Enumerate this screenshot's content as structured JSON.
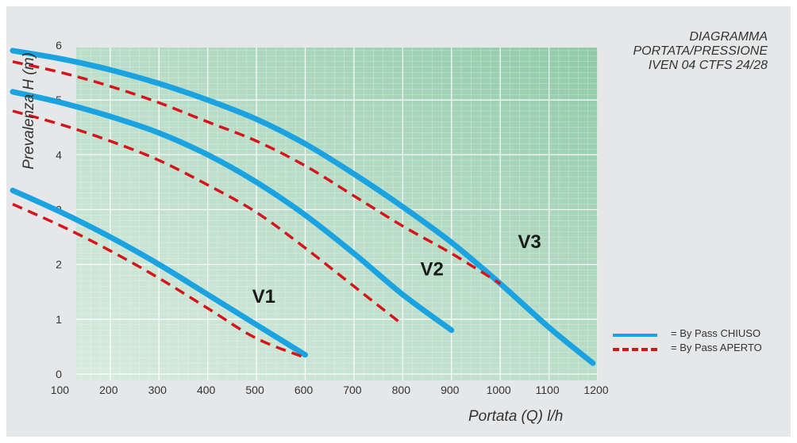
{
  "chart_data": {
    "type": "line",
    "title": [
      "DIAGRAMMA",
      "PORTATA/PRESSIONE",
      "IVEN 04 CTFS 24/28"
    ],
    "xlabel": "Portata (Q) l/h",
    "ylabel": "Prevalenza  H (m)",
    "xlim": [
      0,
      1200
    ],
    "ylim": [
      0,
      6
    ],
    "xticks": [
      100,
      200,
      300,
      400,
      500,
      600,
      700,
      800,
      900,
      1000,
      1100,
      1200
    ],
    "yticks": [
      0,
      1,
      2,
      3,
      4,
      5,
      6
    ],
    "grid": true,
    "legend_position": "right",
    "legend": [
      {
        "label": "By Pass CHIUSO",
        "style": "solid",
        "color": "#1aa3e0"
      },
      {
        "label": "By Pass APERTO",
        "style": "dashed",
        "color": "#d4161c"
      }
    ],
    "curves": [
      {
        "label": "V1",
        "label_at": [
          515,
          1.3
        ],
        "by_pass_chiuso": {
          "x": [
            0,
            100,
            200,
            300,
            400,
            500,
            600
          ],
          "y": [
            3.35,
            2.95,
            2.5,
            2.0,
            1.45,
            0.9,
            0.35
          ]
        },
        "by_pass_aperto": {
          "x": [
            0,
            100,
            200,
            300,
            400,
            500,
            600
          ],
          "y": [
            3.1,
            2.7,
            2.25,
            1.75,
            1.2,
            0.65,
            0.3
          ]
        }
      },
      {
        "label": "V2",
        "label_at": [
          860,
          1.8
        ],
        "by_pass_chiuso": {
          "x": [
            0,
            100,
            200,
            300,
            400,
            500,
            600,
            700,
            800,
            900
          ],
          "y": [
            5.15,
            4.95,
            4.7,
            4.4,
            4.0,
            3.5,
            2.9,
            2.2,
            1.45,
            0.8
          ]
        },
        "by_pass_aperto": {
          "x": [
            0,
            100,
            200,
            300,
            400,
            500,
            600,
            700,
            800
          ],
          "y": [
            4.8,
            4.55,
            4.25,
            3.9,
            3.45,
            2.95,
            2.3,
            1.6,
            0.9
          ]
        }
      },
      {
        "label": "V3",
        "label_at": [
          1060,
          2.3
        ],
        "by_pass_chiuso": {
          "x": [
            0,
            100,
            200,
            300,
            400,
            500,
            600,
            700,
            800,
            900,
            1000,
            1100,
            1190
          ],
          "y": [
            5.9,
            5.75,
            5.55,
            5.3,
            5.0,
            4.65,
            4.2,
            3.65,
            3.05,
            2.4,
            1.65,
            0.85,
            0.2
          ]
        },
        "by_pass_aperto": {
          "x": [
            0,
            100,
            200,
            300,
            400,
            500,
            600,
            700,
            800,
            900,
            1000
          ],
          "y": [
            5.7,
            5.5,
            5.25,
            4.95,
            4.6,
            4.25,
            3.8,
            3.25,
            2.7,
            2.2,
            1.65
          ]
        }
      }
    ]
  }
}
